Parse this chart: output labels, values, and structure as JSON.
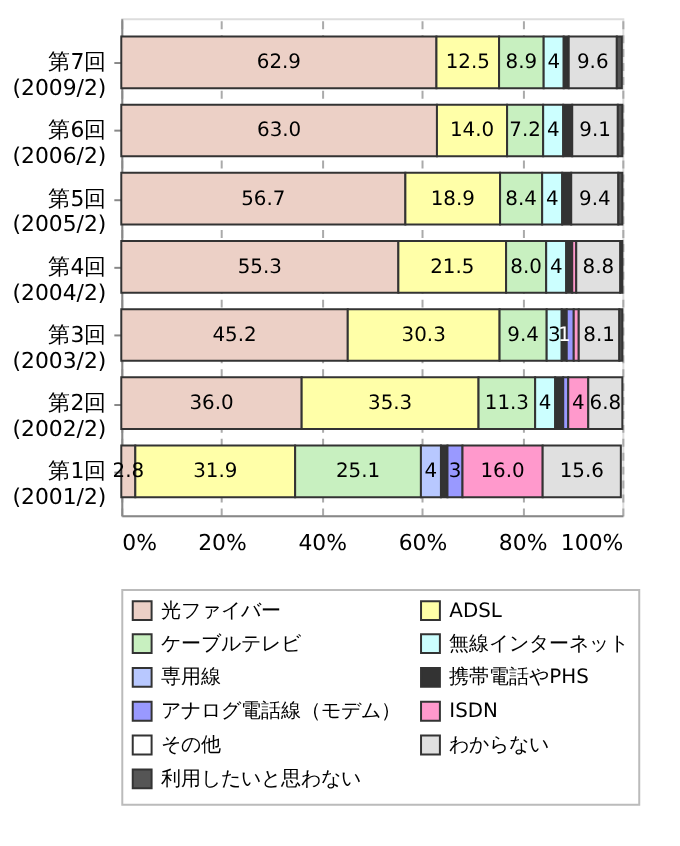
{
  "chart_data": {
    "type": "bar",
    "orientation": "horizontal",
    "stacked": true,
    "categories": [
      "第7回 (2009/2)",
      "第6回 (2006/2)",
      "第5回 (2005/2)",
      "第4回 (2004/2)",
      "第3回 (2003/2)",
      "第2回 (2002/2)",
      "第1回 (2001/2)"
    ],
    "series": [
      {
        "name": "光ファイバー",
        "color": "#ecd0c6",
        "values": [
          62.9,
          63.0,
          56.7,
          55.3,
          45.2,
          36.0,
          2.8
        ],
        "value_labels": [
          "62.9",
          "63.0",
          "56.7",
          "55.3",
          "45.2",
          "36.0",
          "2.8"
        ]
      },
      {
        "name": "ADSL",
        "color": "#ffffa8",
        "values": [
          12.5,
          14.0,
          18.9,
          21.5,
          30.3,
          35.3,
          31.9
        ],
        "value_labels": [
          "12.5",
          "14.0",
          "18.9",
          "21.5",
          "30.3",
          "35.3",
          "31.9"
        ]
      },
      {
        "name": "ケーブルテレビ",
        "color": "#c8f0c0",
        "values": [
          8.9,
          7.2,
          8.4,
          8.0,
          9.4,
          11.3,
          25.1
        ],
        "value_labels": [
          "8.9",
          "7.2",
          "8.4",
          "8.0",
          "9.4",
          "11.3",
          "25.1"
        ]
      },
      {
        "name": "無線インターネット",
        "color": "#ccffff",
        "values": [
          4,
          4,
          4,
          4,
          3,
          4,
          null
        ],
        "value_labels": [
          "4",
          "4",
          "4",
          "4",
          "3",
          "4",
          null
        ]
      },
      {
        "name": "専用線",
        "color": "#b8c8ff",
        "values": [
          null,
          null,
          null,
          null,
          null,
          null,
          4
        ],
        "value_labels": [
          null,
          null,
          null,
          null,
          null,
          null,
          "4"
        ]
      },
      {
        "name": "携帯電話やPHS",
        "color": "#333333",
        "values": [
          1.0,
          1.8,
          1.8,
          1.2,
          1,
          1.6,
          1.3
        ],
        "value_labels": [
          null,
          null,
          null,
          null,
          "1",
          null,
          null
        ]
      },
      {
        "name": "アナログ電話線（モデム）",
        "color": "#9999ff",
        "values": [
          null,
          null,
          null,
          null,
          1.4,
          1.0,
          3
        ],
        "value_labels": [
          null,
          null,
          null,
          null,
          null,
          null,
          "3"
        ]
      },
      {
        "name": "ISDN",
        "color": "#ff99cc",
        "values": [
          null,
          null,
          null,
          0.8,
          1.0,
          4,
          16.0
        ],
        "value_labels": [
          null,
          null,
          null,
          null,
          null,
          "4",
          "16.0"
        ]
      },
      {
        "name": "その他",
        "color": "#ffffff",
        "values": [
          null,
          null,
          null,
          null,
          null,
          null,
          null
        ],
        "value_labels": [
          null,
          null,
          null,
          null,
          null,
          null,
          null
        ]
      },
      {
        "name": "わからない",
        "color": "#e0e0e0",
        "values": [
          9.6,
          9.1,
          9.4,
          8.8,
          8.1,
          6.8,
          15.6
        ],
        "value_labels": [
          "9.6",
          "9.1",
          "9.4",
          "8.8",
          "8.1",
          "6.8",
          "15.6"
        ]
      },
      {
        "name": "利用したいと思わない",
        "color": "#555555",
        "values": [
          1.0,
          0.9,
          0.8,
          0.4,
          0.6,
          null,
          null
        ],
        "value_labels": [
          null,
          null,
          null,
          null,
          null,
          null,
          null
        ]
      }
    ],
    "xlim": [
      0,
      100
    ],
    "xticks": [
      {
        "value": 0,
        "label": "0%"
      },
      {
        "value": 20,
        "label": "20%"
      },
      {
        "value": 40,
        "label": "40%"
      },
      {
        "value": 60,
        "label": "60%"
      },
      {
        "value": 80,
        "label": "80%"
      },
      {
        "value": 100,
        "label": "100%"
      }
    ],
    "grid": "x",
    "line_style": "dashed",
    "legend": "bottom"
  }
}
